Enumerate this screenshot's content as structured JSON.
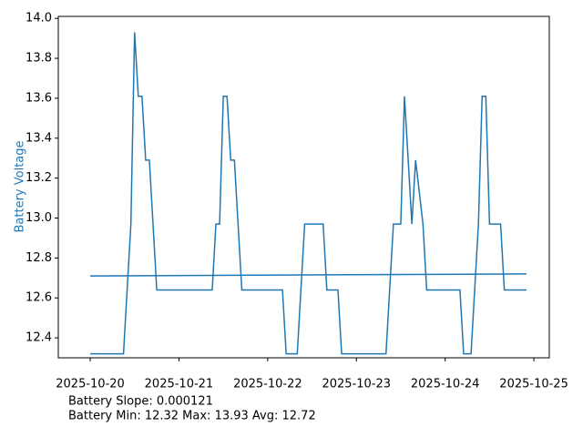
{
  "chart_data": {
    "type": "line",
    "ylabel": "Battery Voltage",
    "ylabel_color": "#1f77b4",
    "annotations": [
      "Battery Slope: 0.000121",
      "Battery Min: 12.32 Max: 13.93 Avg: 12.72"
    ],
    "xlim": [
      "2025-10-19 15:22",
      "2025-10-25 04:10"
    ],
    "xticks": [
      "2025-10-20",
      "2025-10-21",
      "2025-10-22",
      "2025-10-23",
      "2025-10-24",
      "2025-10-25"
    ],
    "ylim": [
      12.3,
      14.01
    ],
    "yticks": [
      12.4,
      12.6,
      12.8,
      {
        "value": 13,
        "label": "13.0"
      },
      13.2,
      13.4,
      13.6,
      13.8,
      {
        "value": 14,
        "label": "14.0"
      }
    ],
    "series": [
      {
        "color": "#1f77b4",
        "x": [
          "2025-10-20 00:00",
          "2025-10-20 09:00",
          "2025-10-20 11:00",
          "2025-10-20 12:00",
          "2025-10-20 13:00",
          "2025-10-20 14:00",
          "2025-10-20 15:00",
          "2025-10-20 16:00",
          "2025-10-20 18:00",
          "2025-10-21 09:00",
          "2025-10-21 10:00",
          "2025-10-21 11:00",
          "2025-10-21 12:00",
          "2025-10-21 13:00",
          "2025-10-21 14:00",
          "2025-10-21 15:00",
          "2025-10-21 17:00",
          "2025-10-22 04:00",
          "2025-10-22 05:00",
          "2025-10-22 08:00",
          "2025-10-22 10:00",
          "2025-10-22 15:00",
          "2025-10-22 16:00",
          "2025-10-22 19:00",
          "2025-10-22 20:00",
          "2025-10-23 08:00",
          "2025-10-23 10:00",
          "2025-10-23 12:00",
          "2025-10-23 13:00",
          "2025-10-23 15:00",
          "2025-10-23 16:00",
          "2025-10-23 18:00",
          "2025-10-23 19:00",
          "2025-10-24 04:00",
          "2025-10-24 05:00",
          "2025-10-24 07:00",
          "2025-10-24 09:00",
          "2025-10-24 10:00",
          "2025-10-24 11:00",
          "2025-10-24 12:00",
          "2025-10-24 15:00",
          "2025-10-24 16:00",
          "2025-10-24 22:00"
        ],
        "values": [
          12.32,
          12.32,
          12.97,
          13.93,
          13.61,
          13.61,
          13.29,
          13.29,
          12.64,
          12.64,
          12.97,
          12.97,
          13.61,
          13.61,
          13.29,
          13.29,
          12.64,
          12.64,
          12.32,
          12.32,
          12.97,
          12.97,
          12.64,
          12.64,
          12.32,
          12.32,
          12.97,
          12.97,
          13.61,
          12.97,
          13.29,
          12.97,
          12.64,
          12.64,
          12.32,
          12.32,
          12.97,
          13.61,
          13.61,
          12.97,
          12.97,
          12.64,
          12.64
        ]
      },
      {
        "color": "#1f77b4",
        "x": [
          "2025-10-20 00:00",
          "2025-10-24 22:00"
        ],
        "values": [
          12.71,
          12.72
        ]
      }
    ]
  }
}
